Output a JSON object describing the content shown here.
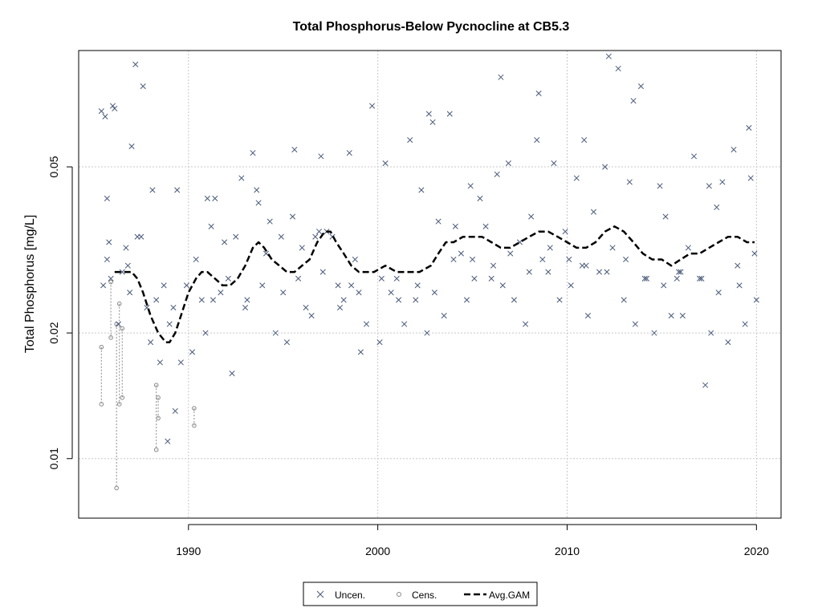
{
  "chart_data": {
    "type": "scatter",
    "title": "Total Phosphorus-Below Pycnocline at CB5.3",
    "ylabel": "Total Phosphorus [mg/L]",
    "xlabel": "",
    "x_scale": "linear",
    "y_scale": "log",
    "xlim": [
      1984.2,
      2021.3
    ],
    "ylim": [
      0.0072,
      0.095
    ],
    "x_ticks": [
      1990,
      2000,
      2010,
      2020
    ],
    "x_tick_labels": [
      "1990",
      "2000",
      "2010",
      "2020"
    ],
    "y_ticks": [
      0.01,
      0.02,
      0.05
    ],
    "y_tick_labels": [
      "0.01",
      "0.02",
      "0.05"
    ],
    "grid": true,
    "legend": {
      "placement": "bottom-center",
      "entries": [
        "Uncen.",
        "Cens.",
        "Avg.GAM"
      ]
    },
    "colors": {
      "uncensored": "#4a5a7a",
      "censored": "#888888",
      "gam": "#000000",
      "grid": "#c8c8c8"
    },
    "series": [
      {
        "name": "Uncen.",
        "kind": "x-marker",
        "x": [
          1985.4,
          1985.6,
          1985.7,
          1985.8,
          1986.0,
          1985.5,
          1985.7,
          1986.3,
          1986.5,
          1986.7,
          1986.9,
          1987.2,
          1987.5,
          1987.6,
          1987.8,
          1988.0,
          1988.3,
          1988.5,
          1988.7,
          1988.9,
          1989.2,
          1989.4,
          1989.6,
          1989.9,
          1990.2,
          1990.4,
          1990.7,
          1990.9,
          1991.2,
          1991.4,
          1991.7,
          1991.9,
          1992.3,
          1992.5,
          1992.8,
          1993.1,
          1993.4,
          1993.7,
          1993.9,
          1994.3,
          1994.6,
          1994.9,
          1995.2,
          1995.5,
          1995.8,
          1996.2,
          1996.5,
          1996.7,
          1997.0,
          1997.3,
          1997.6,
          1997.9,
          1998.2,
          1998.5,
          1998.8,
          1999.1,
          1999.4,
          1999.7,
          2000.1,
          2000.4,
          2000.7,
          2001.0,
          2001.4,
          2001.7,
          2002.0,
          2002.3,
          2002.6,
          2002.9,
          2003.2,
          2003.5,
          2003.8,
          2004.1,
          2004.4,
          2004.7,
          2005.0,
          2005.4,
          2005.7,
          2006.0,
          2006.3,
          2006.6,
          2006.9,
          2007.2,
          2007.5,
          2007.8,
          2008.1,
          2008.4,
          2008.7,
          2009.0,
          2009.3,
          2009.6,
          2009.9,
          2010.2,
          2010.5,
          2010.8,
          2011.1,
          2011.4,
          2011.7,
          2012.0,
          2012.4,
          2012.7,
          2013.0,
          2013.3,
          2013.6,
          2013.9,
          2014.2,
          2014.6,
          2014.9,
          2015.2,
          2015.5,
          2015.8,
          2016.1,
          2016.4,
          2016.7,
          2017.0,
          2017.3,
          2017.6,
          2017.9,
          2018.2,
          2018.5,
          2018.8,
          2019.1,
          2019.4,
          2019.7,
          2019.9,
          1986.1,
          1987.0,
          1988.1,
          1991.0,
          1993.6,
          1995.6,
          1996.9,
          1998.6,
          2002.7,
          2004.9,
          2006.5,
          2008.5,
          2010.9,
          2012.2,
          2013.5,
          2015.9,
          2017.5,
          2019.6
        ],
        "y": [
          0.068,
          0.066,
          0.042,
          0.033,
          0.07,
          0.026,
          0.03,
          0.021,
          0.028,
          0.032,
          0.025,
          0.088,
          0.034,
          0.078,
          0.023,
          0.019,
          0.024,
          0.017,
          0.026,
          0.011,
          0.023,
          0.044,
          0.017,
          0.026,
          0.018,
          0.03,
          0.024,
          0.02,
          0.036,
          0.042,
          0.025,
          0.033,
          0.016,
          0.034,
          0.047,
          0.024,
          0.054,
          0.041,
          0.026,
          0.037,
          0.02,
          0.034,
          0.019,
          0.038,
          0.027,
          0.023,
          0.022,
          0.034,
          0.053,
          0.035,
          0.034,
          0.026,
          0.024,
          0.054,
          0.03,
          0.018,
          0.021,
          0.07,
          0.019,
          0.051,
          0.025,
          0.027,
          0.021,
          0.058,
          0.024,
          0.044,
          0.02,
          0.064,
          0.037,
          0.022,
          0.067,
          0.036,
          0.031,
          0.024,
          0.03,
          0.042,
          0.036,
          0.027,
          0.048,
          0.026,
          0.051,
          0.024,
          0.033,
          0.021,
          0.038,
          0.058,
          0.03,
          0.028,
          0.051,
          0.024,
          0.035,
          0.026,
          0.047,
          0.029,
          0.022,
          0.039,
          0.028,
          0.05,
          0.032,
          0.086,
          0.024,
          0.046,
          0.021,
          0.078,
          0.027,
          0.02,
          0.045,
          0.038,
          0.022,
          0.027,
          0.022,
          0.032,
          0.053,
          0.027,
          0.015,
          0.02,
          0.04,
          0.046,
          0.019,
          0.055,
          0.026,
          0.021,
          0.047,
          0.031,
          0.069,
          0.056,
          0.044,
          0.042,
          0.044,
          0.055,
          0.035,
          0.026,
          0.067,
          0.045,
          0.082,
          0.075,
          0.058,
          0.092,
          0.072,
          0.028,
          0.045,
          0.062
        ],
        "x_extra": [
          1985.9,
          1986.8,
          1987.3,
          1989.0,
          1989.3,
          1991.3,
          1992.1,
          1993.0,
          1994.1,
          1995.0,
          1996.0,
          1997.1,
          1998.0,
          1999.0,
          2000.2,
          2001.1,
          2002.1,
          2003.0,
          2004.0,
          2005.1,
          2006.1,
          2007.0,
          2008.0,
          2009.1,
          2010.1,
          2011.0,
          2012.1,
          2013.1,
          2014.1,
          2015.1,
          2016.0,
          2017.1,
          2018.0,
          2019.0,
          2020.0
        ],
        "y_extra": [
          0.027,
          0.029,
          0.034,
          0.021,
          0.013,
          0.024,
          0.027,
          0.023,
          0.031,
          0.025,
          0.032,
          0.028,
          0.023,
          0.025,
          0.027,
          0.024,
          0.026,
          0.025,
          0.03,
          0.027,
          0.029,
          0.031,
          0.028,
          0.032,
          0.03,
          0.029,
          0.028,
          0.03,
          0.027,
          0.026,
          0.028,
          0.027,
          0.025,
          0.029,
          0.024
        ]
      },
      {
        "name": "Cens.",
        "kind": "interval",
        "intervals": [
          {
            "x": 1985.4,
            "low": 0.0135,
            "high": 0.0185
          },
          {
            "x": 1985.9,
            "low": 0.0195,
            "high": 0.0265
          },
          {
            "x": 1986.2,
            "low": 0.0085,
            "high": 0.021
          },
          {
            "x": 1986.35,
            "low": 0.0135,
            "high": 0.0235
          },
          {
            "x": 1986.5,
            "low": 0.014,
            "high": 0.0205
          },
          {
            "x": 1988.3,
            "low": 0.0105,
            "high": 0.015
          },
          {
            "x": 1988.4,
            "low": 0.0125,
            "high": 0.014
          },
          {
            "x": 1990.3,
            "low": 0.012,
            "high": 0.0132
          }
        ]
      },
      {
        "name": "Avg.GAM",
        "kind": "dashed-line",
        "x": [
          1986.1,
          1986.5,
          1987.0,
          1987.3,
          1987.6,
          1988.0,
          1988.4,
          1988.8,
          1989.0,
          1989.3,
          1989.6,
          1990.0,
          1990.4,
          1990.7,
          1991.0,
          1991.4,
          1991.8,
          1992.2,
          1992.6,
          1993.0,
          1993.4,
          1993.7,
          1994.0,
          1994.4,
          1994.8,
          1995.2,
          1995.6,
          1996.0,
          1996.4,
          1996.8,
          1997.2,
          1997.5,
          1997.8,
          1998.2,
          1998.6,
          1999.0,
          1999.4,
          1999.8,
          2000.4,
          2001.0,
          2001.6,
          2002.2,
          2002.8,
          2003.2,
          2003.6,
          2004.0,
          2004.5,
          2005.0,
          2005.5,
          2006.0,
          2006.5,
          2007.0,
          2007.5,
          2008.0,
          2008.5,
          2009.0,
          2009.5,
          2010.0,
          2010.5,
          2011.0,
          2011.5,
          2012.0,
          2012.5,
          2013.0,
          2013.5,
          2014.0,
          2014.5,
          2015.0,
          2015.5,
          2016.0,
          2016.5,
          2017.0,
          2017.5,
          2018.0,
          2018.5,
          2019.0,
          2019.5,
          2019.9
        ],
        "y": [
          0.028,
          0.028,
          0.028,
          0.027,
          0.025,
          0.022,
          0.02,
          0.019,
          0.019,
          0.02,
          0.022,
          0.025,
          0.027,
          0.028,
          0.028,
          0.027,
          0.026,
          0.026,
          0.027,
          0.029,
          0.032,
          0.033,
          0.032,
          0.03,
          0.029,
          0.028,
          0.028,
          0.029,
          0.03,
          0.033,
          0.035,
          0.035,
          0.033,
          0.031,
          0.029,
          0.028,
          0.028,
          0.028,
          0.029,
          0.028,
          0.028,
          0.028,
          0.029,
          0.031,
          0.033,
          0.033,
          0.034,
          0.034,
          0.034,
          0.033,
          0.032,
          0.032,
          0.033,
          0.034,
          0.035,
          0.035,
          0.034,
          0.033,
          0.032,
          0.032,
          0.033,
          0.035,
          0.036,
          0.035,
          0.033,
          0.031,
          0.03,
          0.03,
          0.029,
          0.03,
          0.031,
          0.031,
          0.032,
          0.033,
          0.034,
          0.034,
          0.033,
          0.033
        ]
      }
    ]
  }
}
